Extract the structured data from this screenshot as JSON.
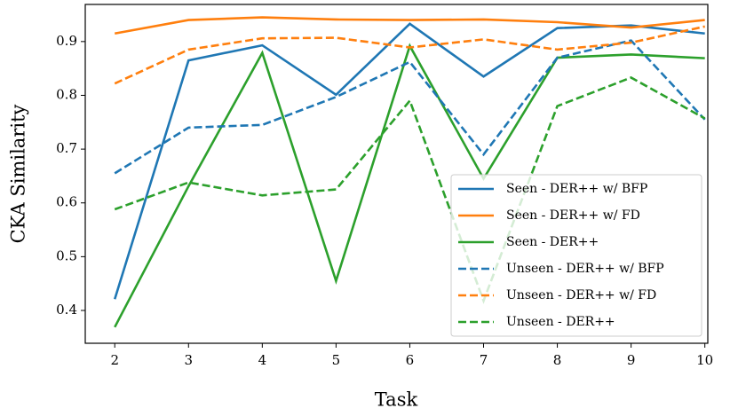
{
  "chart_data": {
    "type": "line",
    "xlabel": "Task",
    "ylabel": "CKA Similarity",
    "x": [
      2,
      3,
      4,
      5,
      6,
      7,
      8,
      9,
      10
    ],
    "xlim": [
      1.6,
      10.04
    ],
    "xticks": [
      2,
      3,
      4,
      5,
      6,
      7,
      8,
      9,
      10
    ],
    "ylim": [
      0.339,
      0.969
    ],
    "yticks": [
      0.4,
      0.5,
      0.6,
      0.7,
      0.8,
      0.9
    ],
    "grid": false,
    "legend": "lower right",
    "series": [
      {
        "name": "Seen - DER++ w/ BFP",
        "color": "#1f77b4",
        "linestyle": "solid",
        "values": [
          0.421,
          0.865,
          0.893,
          0.801,
          0.933,
          0.835,
          0.925,
          0.93,
          0.915
        ]
      },
      {
        "name": "Seen - DER++ w/ FD",
        "color": "#ff7f0e",
        "linestyle": "solid",
        "values": [
          0.915,
          0.94,
          0.945,
          0.941,
          0.94,
          0.941,
          0.936,
          0.926,
          0.94
        ]
      },
      {
        "name": "Seen - DER++",
        "color": "#2ca02c",
        "linestyle": "solid",
        "values": [
          0.369,
          0.631,
          0.879,
          0.455,
          0.892,
          0.645,
          0.87,
          0.876,
          0.869
        ]
      },
      {
        "name": "Unseen - DER++ w/ BFP",
        "color": "#1f77b4",
        "linestyle": "dashed",
        "values": [
          0.655,
          0.74,
          0.745,
          0.797,
          0.862,
          0.69,
          0.87,
          0.902,
          0.755
        ]
      },
      {
        "name": "Unseen - DER++ w/ FD",
        "color": "#ff7f0e",
        "linestyle": "dashed",
        "values": [
          0.822,
          0.885,
          0.906,
          0.907,
          0.889,
          0.904,
          0.885,
          0.898,
          0.928
        ]
      },
      {
        "name": "Unseen - DER++",
        "color": "#2ca02c",
        "linestyle": "dashed",
        "values": [
          0.588,
          0.638,
          0.614,
          0.625,
          0.79,
          0.418,
          0.78,
          0.833,
          0.757
        ]
      }
    ]
  }
}
